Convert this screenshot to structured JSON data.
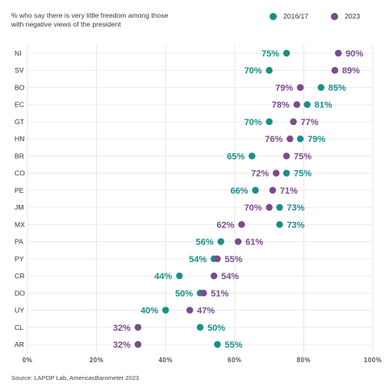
{
  "chart_data": {
    "type": "scatter",
    "subtitle": "% who say there is very little freedom among those with negative views of the president",
    "source": "Source: LAPOP Lab, AmericasBarometer 2023",
    "xlim": [
      0,
      100
    ],
    "x_ticks": [
      "0%",
      "20%",
      "40%",
      "60%",
      "80%",
      "100%"
    ],
    "x_tick_values": [
      0,
      20,
      40,
      60,
      80,
      100
    ],
    "grid": true,
    "legend_position": "top-right",
    "categories": [
      "NI",
      "SV",
      "BO",
      "EC",
      "GT",
      "HN",
      "BR",
      "CO",
      "PE",
      "JM",
      "MX",
      "PA",
      "PY",
      "CR",
      "DO",
      "UY",
      "CL",
      "AR"
    ],
    "series": [
      {
        "name": "2016/17",
        "color": "#1a8f87",
        "values": [
          75,
          70,
          85,
          81,
          70,
          79,
          65,
          75,
          66,
          73,
          73,
          56,
          54,
          44,
          50,
          40,
          50,
          55
        ],
        "labels": [
          "75%",
          "70%",
          "85%",
          "81%",
          "70%",
          "79%",
          "65%",
          "75%",
          "66%",
          "73%",
          "73%",
          "56%",
          "54%",
          "44%",
          "50%",
          "40%",
          "50%",
          "55%"
        ]
      },
      {
        "name": "2023",
        "color": "#7b4b8c",
        "values": [
          90,
          89,
          79,
          78,
          77,
          76,
          75,
          72,
          71,
          70,
          62,
          61,
          55,
          54,
          51,
          47,
          32,
          32
        ],
        "labels": [
          "90%",
          "89%",
          "79%",
          "78%",
          "77%",
          "76%",
          "75%",
          "72%",
          "71%",
          "70%",
          "62%",
          "61%",
          "55%",
          "54%",
          "51%",
          "47%",
          "32%",
          "32%"
        ]
      }
    ]
  }
}
